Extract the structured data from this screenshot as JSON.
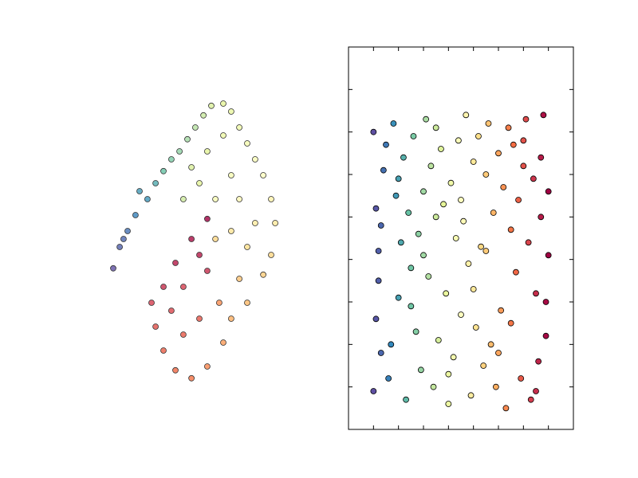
{
  "chart_data": [
    {
      "type": "scatter",
      "view": "3d",
      "x": [
        0.14,
        0.167,
        0.2,
        0.233,
        0.183,
        0.283,
        0.25,
        0.317,
        0.35,
        0.383,
        0.417,
        0.45,
        0.483,
        0.517,
        0.55,
        0.6,
        0.633,
        0.667,
        0.467,
        0.5,
        0.433,
        0.533,
        0.6,
        0.7,
        0.733,
        0.767,
        0.633,
        0.567,
        0.667,
        0.8,
        0.817,
        0.733,
        0.633,
        0.7,
        0.8,
        0.767,
        0.667,
        0.7,
        0.633,
        0.6,
        0.533,
        0.467,
        0.4,
        0.35,
        0.317,
        0.3,
        0.35,
        0.4,
        0.467,
        0.533,
        0.433,
        0.5,
        0.433,
        0.533,
        0.583,
        0.383,
        0.567,
        0.5
      ],
      "y": [
        0.408,
        0.475,
        0.525,
        0.575,
        0.5,
        0.625,
        0.65,
        0.675,
        0.713,
        0.75,
        0.775,
        0.813,
        0.85,
        0.888,
        0.918,
        0.925,
        0.9,
        0.85,
        0.725,
        0.675,
        0.625,
        0.775,
        0.825,
        0.8,
        0.75,
        0.7,
        0.7,
        0.625,
        0.625,
        0.625,
        0.55,
        0.55,
        0.525,
        0.475,
        0.45,
        0.388,
        0.375,
        0.3,
        0.25,
        0.175,
        0.1,
        0.063,
        0.088,
        0.15,
        0.225,
        0.3,
        0.35,
        0.425,
        0.5,
        0.563,
        0.35,
        0.25,
        0.2,
        0.4,
        0.3,
        0.275,
        0.5,
        0.45
      ],
      "c": [
        0,
        0.03,
        0.06,
        0.09,
        0.04,
        0.12,
        0.13,
        0.16,
        0.2,
        0.23,
        0.26,
        0.29,
        0.32,
        0.35,
        0.38,
        0.4,
        0.42,
        0.44,
        0.38,
        0.4,
        0.36,
        0.4,
        0.43,
        0.46,
        0.48,
        0.5,
        0.47,
        0.47,
        0.52,
        0.54,
        0.57,
        0.56,
        0.58,
        0.6,
        0.62,
        0.64,
        0.66,
        0.68,
        0.7,
        0.73,
        0.76,
        0.79,
        0.81,
        0.83,
        0.86,
        0.9,
        0.93,
        0.96,
        0.98,
        1,
        0.9,
        0.85,
        0.84,
        0.93,
        0.75,
        0.88,
        0.62,
        0.96
      ],
      "xlim": [
        0,
        1
      ],
      "ylim": [
        0,
        1
      ],
      "clim": [
        0,
        1
      ],
      "colormap": [
        "#5e4fa2",
        "#3288bd",
        "#66c2a5",
        "#abdda4",
        "#e6f598",
        "#ffffbf",
        "#fee08b",
        "#fdae61",
        "#f46d43",
        "#d53e4f",
        "#9e0142"
      ]
    },
    {
      "type": "scatter",
      "x": [
        -0.03,
        -0.029,
        -0.028,
        -0.027,
        -0.026,
        -0.03,
        -0.028,
        -0.025,
        -0.029,
        -0.027,
        -0.024,
        -0.022,
        -0.021,
        -0.02,
        -0.019,
        -0.023,
        -0.018,
        -0.017,
        -0.016,
        -0.015,
        -0.02,
        -0.014,
        -0.013,
        -0.012,
        -0.011,
        -0.01,
        -0.015,
        -0.009,
        -0.008,
        -0.007,
        -0.006,
        -0.005,
        -0.01,
        -0.004,
        -0.003,
        -0.002,
        -0.001,
        0,
        -0.005,
        0.001,
        0.002,
        0.003,
        0.004,
        0.005,
        0,
        0.006,
        0.007,
        0.008,
        0.009,
        0.01,
        0.005,
        0.011,
        0.012,
        0.013,
        0.014,
        0.015,
        0.01,
        0.016,
        0.017,
        0.018,
        0.019,
        0.02,
        0.015,
        0.021,
        0.022,
        0.023,
        0.024,
        0.025,
        0.02,
        0.026,
        0.027,
        0.028,
        0.029,
        0.03,
        0.025,
        0.031,
        0.032,
        0.033,
        0.034,
        0.035,
        0.03,
        0.036,
        0.037,
        0.038,
        0.039,
        0.04,
        0.035,
        0.037,
        0.039,
        0.04
      ],
      "y": [
        0.03,
        0.012,
        -0.005,
        -0.022,
        0.021,
        -0.031,
        0.002,
        0.027,
        -0.014,
        0.008,
        -0.028,
        0.032,
        0.015,
        -0.009,
        0.004,
        -0.02,
        0.024,
        -0.033,
        0.011,
        -0.002,
        0.019,
        0.029,
        -0.017,
        0.006,
        -0.026,
        0.016,
        -0.011,
        0.033,
        -0.004,
        0.022,
        -0.03,
        0.01,
        0.001,
        -0.019,
        0.026,
        0.013,
        -0.008,
        -0.034,
        0.031,
        0.018,
        -0.023,
        0.005,
        0.028,
        -0.013,
        -0.027,
        0.009,
        0.034,
        -0.001,
        -0.032,
        0.023,
        0.014,
        -0.016,
        0.029,
        0.003,
        -0.025,
        0.02,
        -0.007,
        0.032,
        -0.02,
        0.011,
        -0.03,
        0.025,
        0.002,
        -0.012,
        0.017,
        -0.035,
        0.031,
        0.007,
        -0.022,
        0.027,
        -0.003,
        0.014,
        -0.028,
        0.022,
        -0.015,
        0.033,
        0.004,
        -0.033,
        0.019,
        -0.008,
        0.028,
        -0.024,
        0.01,
        0.034,
        -0.018,
        0.001,
        -0.031,
        0.024,
        -0.01,
        0.016
      ],
      "xlim": [
        -0.04,
        0.05
      ],
      "ylim": [
        -0.04,
        0.05
      ],
      "clim": [
        -0.03,
        0.04
      ],
      "xticks": [
        -0.03,
        -0.02,
        -0.01,
        0,
        0.01,
        0.02,
        0.03,
        0.04
      ],
      "yticks": [
        -0.03,
        -0.02,
        -0.01,
        0,
        0.01,
        0.02,
        0.03,
        0.04
      ],
      "colormap": [
        "#5e4fa2",
        "#3288bd",
        "#66c2a5",
        "#abdda4",
        "#e6f598",
        "#ffffbf",
        "#fee08b",
        "#fdae61",
        "#f46d43",
        "#d53e4f",
        "#9e0142"
      ]
    }
  ]
}
